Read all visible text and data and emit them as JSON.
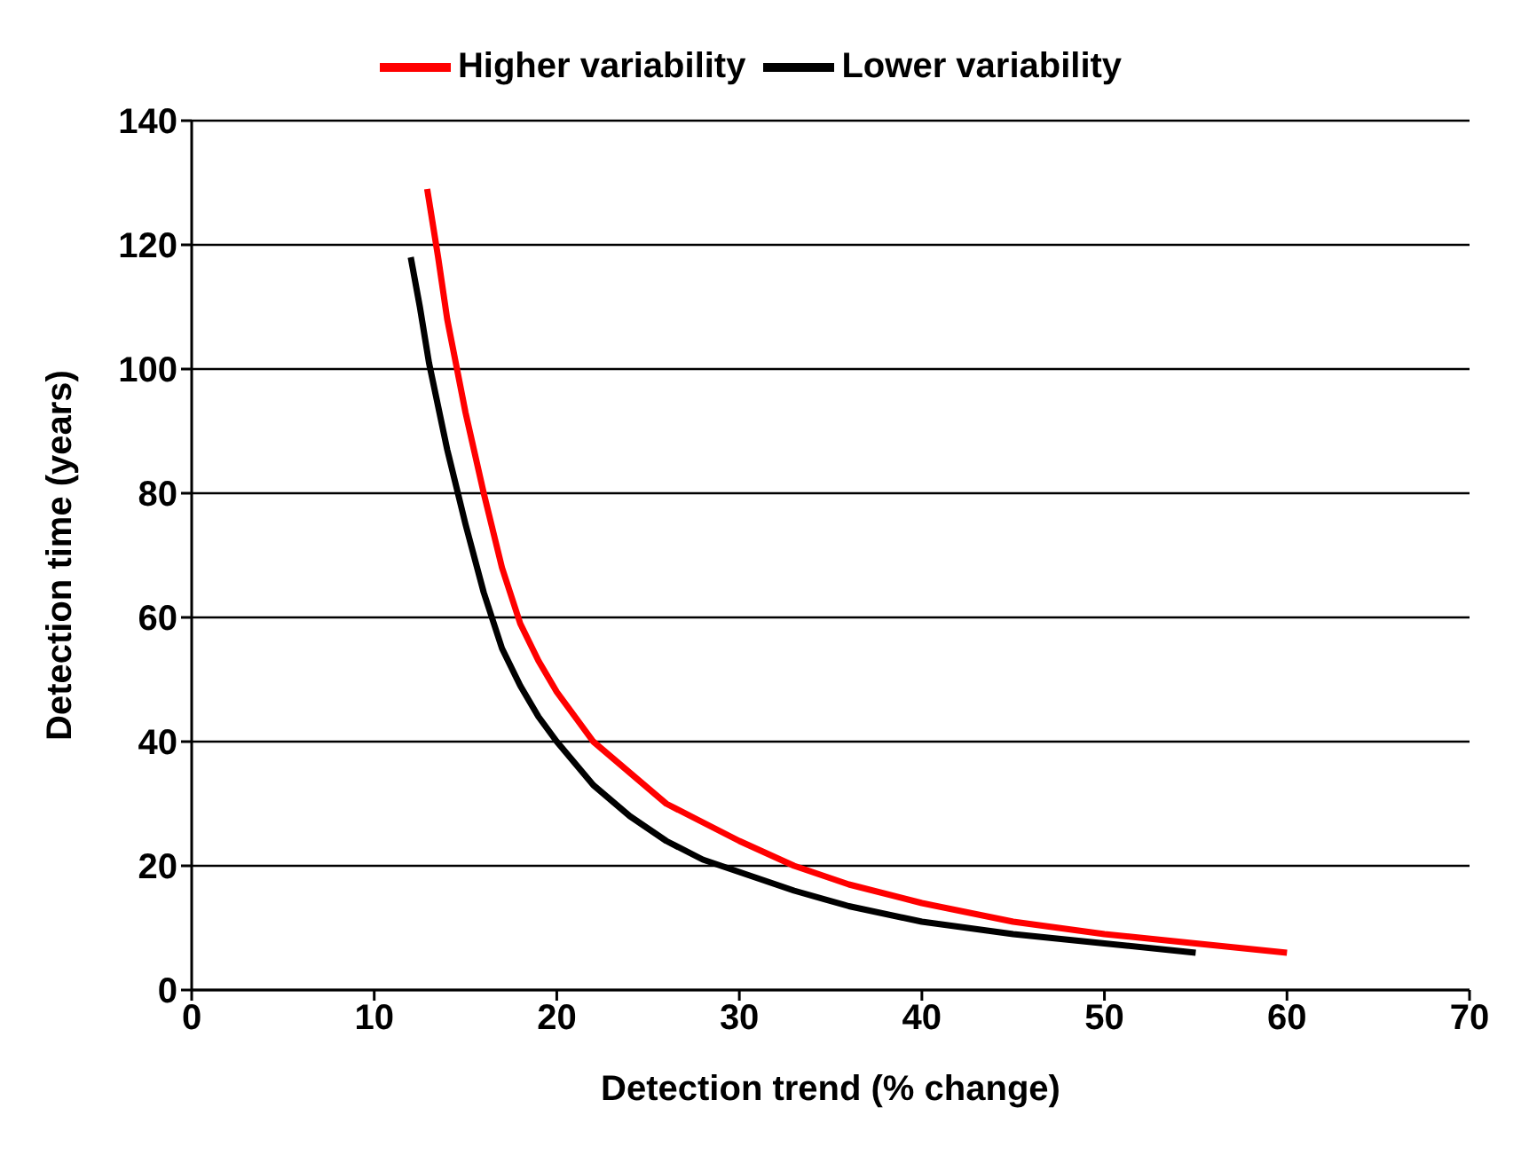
{
  "chart_data": {
    "type": "line",
    "xlabel": "Detection trend (% change)",
    "ylabel": "Detection time (years)",
    "xlim": [
      0,
      70
    ],
    "xticks": [
      0,
      10,
      20,
      30,
      40,
      50,
      60,
      70
    ],
    "ylim": [
      0,
      140
    ],
    "yticks": [
      0,
      20,
      40,
      60,
      80,
      100,
      120,
      140
    ],
    "grid": "y",
    "legend": "top",
    "marker": "none",
    "line_style": "solid",
    "series": [
      {
        "name": "Lower variability",
        "color": "#000000",
        "x": [
          12,
          12.5,
          13,
          14,
          15,
          16,
          17,
          18,
          19,
          20,
          22,
          24,
          26,
          28,
          30,
          33,
          36,
          40,
          45,
          50,
          55
        ],
        "values": [
          118,
          110,
          101,
          87,
          75,
          64,
          55,
          49,
          44,
          40,
          33,
          28,
          24,
          21,
          19,
          16,
          13.5,
          11,
          9,
          7.5,
          6
        ]
      },
      {
        "name": "Higher variability",
        "color": "#ff0000",
        "x": [
          12.9,
          13.5,
          14,
          15,
          16,
          17,
          18,
          19,
          20,
          22,
          24,
          26,
          28,
          30,
          33,
          36,
          40,
          45,
          50,
          55,
          60
        ],
        "values": [
          129,
          118,
          108,
          93,
          80,
          68,
          59,
          53,
          48,
          40,
          35,
          30,
          27,
          24,
          20,
          17,
          14,
          11,
          9,
          7.5,
          6
        ]
      }
    ]
  }
}
